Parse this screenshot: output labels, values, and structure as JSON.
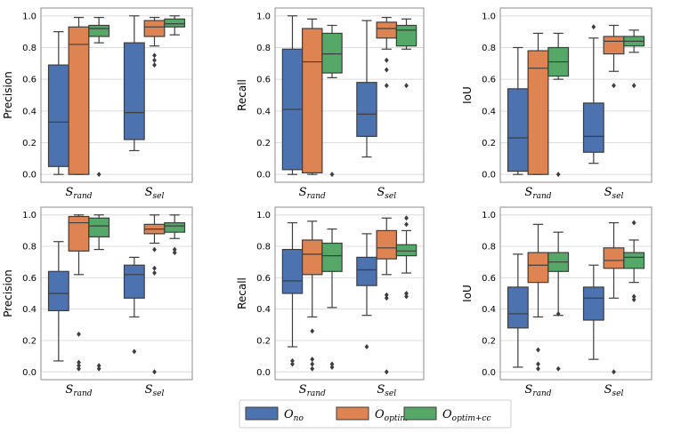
{
  "colors": {
    "O_no": "#4c72b0",
    "O_optim": "#dd8452",
    "O_optim_cc": "#55a868",
    "grid": "#dcdcdc",
    "frame": "#8c8c8c",
    "whisker": "#3d3d3d"
  },
  "legend": [
    {
      "key": "O_no",
      "label": "O",
      "sub": "no"
    },
    {
      "key": "O_optim",
      "label": "O",
      "sub": "optim"
    },
    {
      "key": "O_optim_cc",
      "label": "O",
      "sub": "optim+cc"
    }
  ],
  "chart_data": [
    {
      "type": "box",
      "ylabel": "Precision",
      "ylim": [
        0,
        1.0
      ],
      "yticks": [
        "0.0",
        "0.2",
        "0.4",
        "0.6",
        "0.8",
        "1.0"
      ],
      "categories": [
        {
          "main": "S",
          "sub": "rand"
        },
        {
          "main": "S",
          "sub": "sel"
        }
      ],
      "series": [
        {
          "name": "O_no",
          "boxes": [
            {
              "min": 0.0,
              "q1": 0.05,
              "median": 0.33,
              "q3": 0.69,
              "max": 0.9,
              "outliers": []
            },
            {
              "min": 0.15,
              "q1": 0.22,
              "median": 0.39,
              "q3": 0.83,
              "max": 1.0,
              "outliers": []
            }
          ]
        },
        {
          "name": "O_optim",
          "boxes": [
            {
              "min": 0.0,
              "q1": 0.0,
              "median": 0.82,
              "q3": 0.93,
              "max": 0.99,
              "outliers": []
            },
            {
              "min": 0.81,
              "q1": 0.87,
              "median": 0.93,
              "q3": 0.97,
              "max": 0.99,
              "outliers": [
                0.75,
                0.72,
                0.69
              ]
            }
          ]
        },
        {
          "name": "O_optim_cc",
          "boxes": [
            {
              "min": 0.83,
              "q1": 0.87,
              "median": 0.92,
              "q3": 0.94,
              "max": 0.99,
              "outliers": [
                0.0
              ]
            },
            {
              "min": 0.88,
              "q1": 0.93,
              "median": 0.95,
              "q3": 0.98,
              "max": 1.0,
              "outliers": []
            }
          ]
        }
      ]
    },
    {
      "type": "box",
      "ylabel": "Recall",
      "ylim": [
        0,
        1.0
      ],
      "yticks": [
        "0.0",
        "0.2",
        "0.4",
        "0.6",
        "0.8",
        "1.0"
      ],
      "categories": [
        {
          "main": "S",
          "sub": "rand"
        },
        {
          "main": "S",
          "sub": "sel"
        }
      ],
      "series": [
        {
          "name": "O_no",
          "boxes": [
            {
              "min": 0.0,
              "q1": 0.03,
              "median": 0.41,
              "q3": 0.79,
              "max": 1.0,
              "outliers": []
            },
            {
              "min": 0.11,
              "q1": 0.24,
              "median": 0.38,
              "q3": 0.58,
              "max": 0.97,
              "outliers": []
            }
          ]
        },
        {
          "name": "O_optim",
          "boxes": [
            {
              "min": 0.0,
              "q1": 0.01,
              "median": 0.71,
              "q3": 0.92,
              "max": 0.98,
              "outliers": []
            },
            {
              "min": 0.79,
              "q1": 0.86,
              "median": 0.92,
              "q3": 0.96,
              "max": 0.99,
              "outliers": [
                0.72,
                0.66,
                0.56
              ]
            }
          ]
        },
        {
          "name": "O_optim_cc",
          "boxes": [
            {
              "min": 0.61,
              "q1": 0.64,
              "median": 0.76,
              "q3": 0.89,
              "max": 0.94,
              "outliers": [
                0.0
              ]
            },
            {
              "min": 0.79,
              "q1": 0.81,
              "median": 0.91,
              "q3": 0.94,
              "max": 0.98,
              "outliers": [
                0.56
              ]
            }
          ]
        }
      ]
    },
    {
      "type": "box",
      "ylabel": "IoU",
      "ylim": [
        0,
        1.0
      ],
      "yticks": [
        "0.0",
        "0.2",
        "0.4",
        "0.6",
        "0.8",
        "1.0"
      ],
      "categories": [
        {
          "main": "S",
          "sub": "rand"
        },
        {
          "main": "S",
          "sub": "sel"
        }
      ],
      "series": [
        {
          "name": "O_no",
          "boxes": [
            {
              "min": 0.0,
              "q1": 0.02,
              "median": 0.23,
              "q3": 0.54,
              "max": 0.8,
              "outliers": []
            },
            {
              "min": 0.07,
              "q1": 0.14,
              "median": 0.24,
              "q3": 0.45,
              "max": 0.86,
              "outliers": [
                0.93
              ]
            }
          ]
        },
        {
          "name": "O_optim",
          "boxes": [
            {
              "min": 0.0,
              "q1": 0.0,
              "median": 0.67,
              "q3": 0.78,
              "max": 0.89,
              "outliers": []
            },
            {
              "min": 0.65,
              "q1": 0.76,
              "median": 0.84,
              "q3": 0.87,
              "max": 0.94,
              "outliers": [
                0.56
              ]
            }
          ]
        },
        {
          "name": "O_optim_cc",
          "boxes": [
            {
              "min": 0.6,
              "q1": 0.62,
              "median": 0.71,
              "q3": 0.8,
              "max": 0.89,
              "outliers": [
                0.0
              ]
            },
            {
              "min": 0.77,
              "q1": 0.81,
              "median": 0.84,
              "q3": 0.87,
              "max": 0.91,
              "outliers": [
                0.56
              ]
            }
          ]
        }
      ]
    },
    {
      "type": "box",
      "ylabel": "Precision",
      "ylim": [
        0,
        1.0
      ],
      "yticks": [
        "0.0",
        "0.2",
        "0.4",
        "0.6",
        "0.8",
        "1.0"
      ],
      "categories": [
        {
          "main": "S",
          "sub": "rand"
        },
        {
          "main": "S",
          "sub": "sel"
        }
      ],
      "series": [
        {
          "name": "O_no",
          "boxes": [
            {
              "min": 0.07,
              "q1": 0.39,
              "median": 0.5,
              "q3": 0.64,
              "max": 0.83,
              "outliers": []
            },
            {
              "min": 0.35,
              "q1": 0.47,
              "median": 0.62,
              "q3": 0.68,
              "max": 0.73,
              "outliers": [
                0.13
              ]
            }
          ]
        },
        {
          "name": "O_optim",
          "boxes": [
            {
              "min": 0.62,
              "q1": 0.77,
              "median": 0.95,
              "q3": 0.99,
              "max": 1.0,
              "outliers": [
                0.24,
                0.06,
                0.04,
                0.02
              ]
            },
            {
              "min": 0.82,
              "q1": 0.88,
              "median": 0.91,
              "q3": 0.94,
              "max": 1.0,
              "outliers": [
                0.78,
                0.66,
                0.63,
                0.0
              ]
            }
          ]
        },
        {
          "name": "O_optim_cc",
          "boxes": [
            {
              "min": 0.78,
              "q1": 0.86,
              "median": 0.93,
              "q3": 0.98,
              "max": 1.0,
              "outliers": [
                0.04,
                0.02
              ]
            },
            {
              "min": 0.85,
              "q1": 0.89,
              "median": 0.93,
              "q3": 0.95,
              "max": 1.0,
              "outliers": [
                0.78,
                0.76
              ]
            }
          ]
        }
      ]
    },
    {
      "type": "box",
      "ylabel": "Recall",
      "ylim": [
        0,
        1.0
      ],
      "yticks": [
        "0.0",
        "0.2",
        "0.4",
        "0.6",
        "0.8",
        "1.0"
      ],
      "categories": [
        {
          "main": "S",
          "sub": "rand"
        },
        {
          "main": "S",
          "sub": "sel"
        }
      ],
      "series": [
        {
          "name": "O_no",
          "boxes": [
            {
              "min": 0.16,
              "q1": 0.5,
              "median": 0.58,
              "q3": 0.78,
              "max": 0.95,
              "outliers": [
                0.07,
                0.05
              ]
            },
            {
              "min": 0.36,
              "q1": 0.55,
              "median": 0.65,
              "q3": 0.73,
              "max": 0.88,
              "outliers": [
                0.16
              ]
            }
          ]
        },
        {
          "name": "O_optim",
          "boxes": [
            {
              "min": 0.35,
              "q1": 0.62,
              "median": 0.75,
              "q3": 0.84,
              "max": 0.96,
              "outliers": [
                0.26,
                0.08,
                0.05,
                0.02
              ]
            },
            {
              "min": 0.62,
              "q1": 0.72,
              "median": 0.79,
              "q3": 0.9,
              "max": 0.98,
              "outliers": [
                0.49,
                0.47,
                0.0
              ]
            }
          ]
        },
        {
          "name": "O_optim_cc",
          "boxes": [
            {
              "min": 0.41,
              "q1": 0.64,
              "median": 0.74,
              "q3": 0.82,
              "max": 0.91,
              "outliers": [
                0.05,
                0.03
              ]
            },
            {
              "min": 0.63,
              "q1": 0.74,
              "median": 0.77,
              "q3": 0.81,
              "max": 0.9,
              "outliers": [
                0.98,
                0.94,
                0.5,
                0.48
              ]
            }
          ]
        }
      ]
    },
    {
      "type": "box",
      "ylabel": "IoU",
      "ylim": [
        0,
        1.0
      ],
      "yticks": [
        "0.0",
        "0.2",
        "0.4",
        "0.6",
        "0.8",
        "1.0"
      ],
      "categories": [
        {
          "main": "S",
          "sub": "rand"
        },
        {
          "main": "S",
          "sub": "sel"
        }
      ],
      "series": [
        {
          "name": "O_no",
          "boxes": [
            {
              "min": 0.03,
              "q1": 0.28,
              "median": 0.37,
              "q3": 0.54,
              "max": 0.75,
              "outliers": []
            },
            {
              "min": 0.08,
              "q1": 0.33,
              "median": 0.47,
              "q3": 0.54,
              "max": 0.68,
              "outliers": []
            }
          ]
        },
        {
          "name": "O_optim",
          "boxes": [
            {
              "min": 0.35,
              "q1": 0.57,
              "median": 0.68,
              "q3": 0.76,
              "max": 0.94,
              "outliers": [
                0.14,
                0.05,
                0.02
              ]
            },
            {
              "min": 0.47,
              "q1": 0.66,
              "median": 0.71,
              "q3": 0.79,
              "max": 0.95,
              "outliers": [
                0.0
              ]
            }
          ]
        },
        {
          "name": "O_optim_cc",
          "boxes": [
            {
              "min": 0.36,
              "q1": 0.64,
              "median": 0.7,
              "q3": 0.76,
              "max": 0.89,
              "outliers": [
                0.37,
                0.02
              ]
            },
            {
              "min": 0.57,
              "q1": 0.66,
              "median": 0.73,
              "q3": 0.76,
              "max": 0.84,
              "outliers": [
                0.95,
                0.48,
                0.46
              ]
            }
          ]
        }
      ]
    }
  ]
}
